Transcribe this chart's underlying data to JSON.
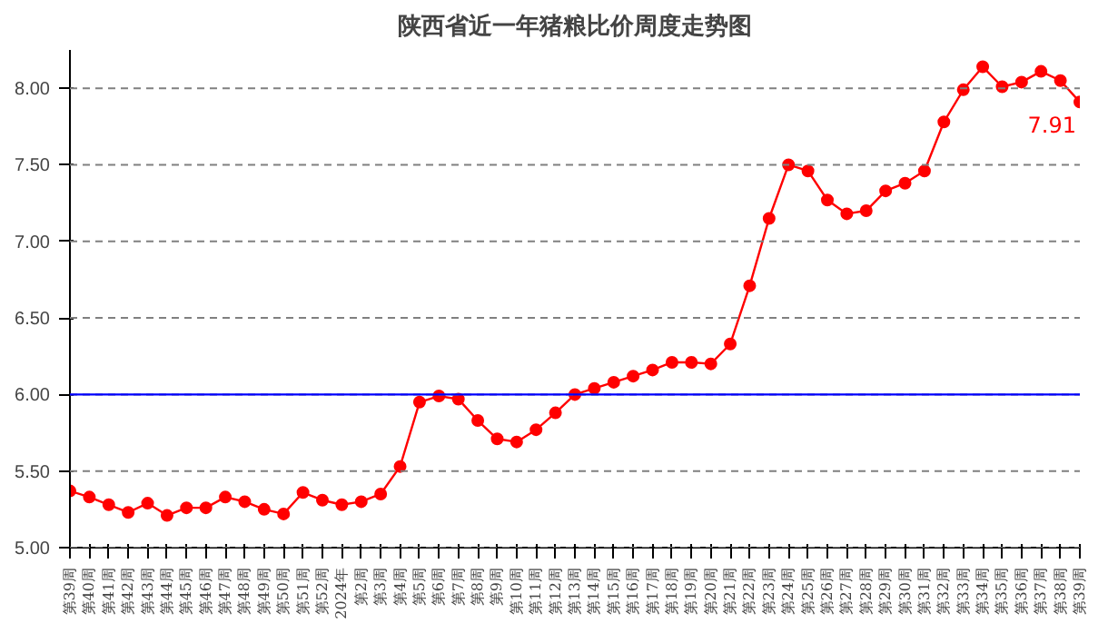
{
  "chart_data": {
    "type": "line",
    "title": "陕西省近一年猪粮比价周度走势图",
    "categories": [
      "第39周",
      "第40周",
      "第41周",
      "第42周",
      "第43周",
      "第44周",
      "第45周",
      "第46周",
      "第47周",
      "第48周",
      "第49周",
      "第50周",
      "第51周",
      "第52周",
      "2024年",
      "第2周",
      "第3周",
      "第4周",
      "第5周",
      "第6周",
      "第7周",
      "第8周",
      "第9周",
      "第10周",
      "第11周",
      "第12周",
      "第13周",
      "第14周",
      "第15周",
      "第16周",
      "第17周",
      "第18周",
      "第19周",
      "第20周",
      "第21周",
      "第22周",
      "第23周",
      "第24周",
      "第25周",
      "第26周",
      "第27周",
      "第28周",
      "第29周",
      "第30周",
      "第31周",
      "第32周",
      "第33周",
      "第34周",
      "第35周",
      "第36周",
      "第37周",
      "第38周",
      "第39周"
    ],
    "series": [
      {
        "color": "#ff0000",
        "values": [
          5.37,
          5.33,
          5.28,
          5.23,
          5.29,
          5.21,
          5.26,
          5.26,
          5.33,
          5.3,
          5.25,
          5.22,
          5.36,
          5.31,
          5.28,
          5.3,
          5.35,
          5.53,
          5.95,
          5.99,
          5.97,
          5.83,
          5.71,
          5.69,
          5.77,
          5.88,
          6.0,
          6.04,
          6.08,
          6.12,
          6.16,
          6.21,
          6.21,
          6.2,
          6.33,
          6.71,
          7.15,
          7.5,
          7.46,
          7.27,
          7.18,
          7.2,
          7.33,
          7.38,
          7.46,
          7.78,
          7.99,
          8.14,
          8.01,
          8.04,
          8.11,
          8.05,
          7.91
        ],
        "value_labels": [
          null,
          null,
          null,
          null,
          null,
          null,
          null,
          null,
          null,
          null,
          null,
          null,
          null,
          null,
          null,
          null,
          null,
          null,
          null,
          null,
          null,
          null,
          null,
          null,
          null,
          null,
          null,
          null,
          null,
          null,
          null,
          null,
          null,
          null,
          null,
          null,
          null,
          null,
          null,
          null,
          null,
          null,
          null,
          null,
          null,
          null,
          null,
          null,
          null,
          null,
          null,
          null,
          "7.91"
        ]
      }
    ],
    "ylim": [
      5,
      8.25
    ],
    "yticks": [
      {
        "value": 5,
        "label": "5.00"
      },
      {
        "value": 5.5,
        "label": "5.50"
      },
      {
        "value": 6,
        "label": "6.00"
      },
      {
        "value": 6.5,
        "label": "6.50"
      },
      {
        "value": 7,
        "label": "7.00"
      },
      {
        "value": 7.5,
        "label": "7.50"
      },
      {
        "value": 8,
        "label": "8.00"
      }
    ],
    "ref_lines": [
      {
        "axis": "y",
        "value": 6,
        "color": "#0000ff"
      }
    ],
    "grid": "y",
    "marker": "circle",
    "line_style": "solid"
  }
}
